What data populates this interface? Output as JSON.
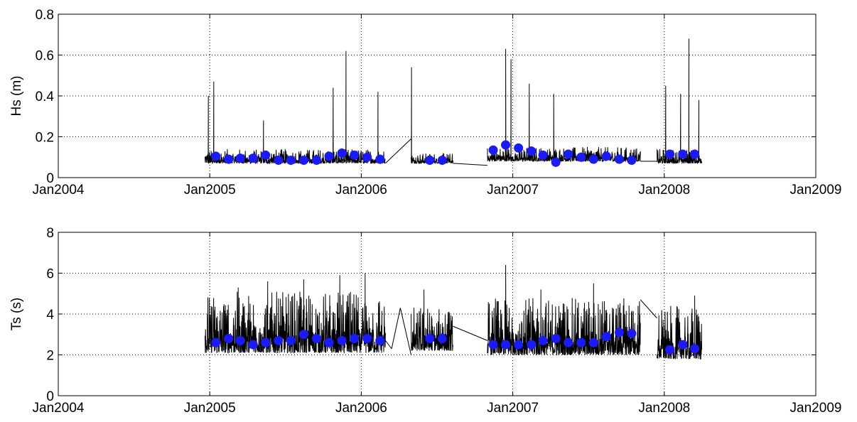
{
  "chart_data": [
    {
      "type": "line",
      "ylabel": "Hs (m)",
      "xlabel": "",
      "title": "",
      "xlim": [
        "2004-01-01",
        "2009-01-01"
      ],
      "ylim": [
        0,
        0.8
      ],
      "grid": true,
      "x_tick_labels": [
        "Jan2004",
        "Jan2005",
        "Jan2006",
        "Jan2007",
        "Jan2008",
        "Jan2009"
      ],
      "y_tick_labels": [
        "0",
        "0.2",
        "0.4",
        "0.6",
        "0.8"
      ],
      "y_ticks": [
        0,
        0.2,
        0.4,
        0.6,
        0.8
      ],
      "series": [
        {
          "style": "time-series line",
          "color": "#000000",
          "segments": [
            {
              "start": "2004-12-20",
              "end": "2006-02-28",
              "baseline": 0.07,
              "spread": 0.07,
              "peaks": [
                [
                  "2004-12-28",
                  0.4
                ],
                [
                  "2005-01-10",
                  0.47
                ],
                [
                  "2005-05-10",
                  0.28
                ],
                [
                  "2005-10-25",
                  0.44
                ],
                [
                  "2005-11-25",
                  0.62
                ],
                [
                  "2006-02-10",
                  0.42
                ]
              ]
            },
            {
              "start": "2006-05-01",
              "end": "2006-08-10",
              "baseline": 0.07,
              "spread": 0.05,
              "peaks": [
                [
                  "2006-05-02",
                  0.54
                ]
              ]
            },
            {
              "start": "2006-11-01",
              "end": "2007-11-05",
              "baseline": 0.08,
              "spread": 0.07,
              "peaks": [
                [
                  "2006-12-15",
                  0.63
                ],
                [
                  "2006-12-28",
                  0.58
                ],
                [
                  "2007-02-10",
                  0.46
                ],
                [
                  "2007-04-10",
                  0.41
                ]
              ]
            },
            {
              "start": "2007-12-15",
              "end": "2008-04-01",
              "baseline": 0.07,
              "spread": 0.07,
              "peaks": [
                [
                  "2008-01-05",
                  0.45
                ],
                [
                  "2008-02-10",
                  0.41
                ],
                [
                  "2008-03-01",
                  0.68
                ],
                [
                  "2008-03-25",
                  0.38
                ]
              ]
            }
          ],
          "connectors": [
            [
              [
                "2006-02-28",
                0.07
              ],
              [
                "2006-05-01",
                0.19
              ]
            ],
            [
              [
                "2006-08-10",
                0.07
              ],
              [
                "2006-11-01",
                0.06
              ]
            ],
            [
              [
                "2007-11-05",
                0.08
              ],
              [
                "2007-12-15",
                0.08
              ]
            ]
          ]
        },
        {
          "style": "markers",
          "color": "#1a1aff",
          "x": [
            "2005-01-15",
            "2005-02-15",
            "2005-03-15",
            "2005-04-15",
            "2005-05-15",
            "2005-06-15",
            "2005-07-15",
            "2005-08-15",
            "2005-09-15",
            "2005-10-15",
            "2005-11-15",
            "2005-12-15",
            "2006-01-15",
            "2006-02-15",
            "2006-06-15",
            "2006-07-15",
            "2006-11-15",
            "2006-12-15",
            "2007-01-15",
            "2007-02-15",
            "2007-03-15",
            "2007-04-15",
            "2007-05-15",
            "2007-06-15",
            "2007-07-15",
            "2007-08-15",
            "2007-09-15",
            "2007-10-15",
            "2008-01-15",
            "2008-02-15",
            "2008-03-15"
          ],
          "y": [
            0.105,
            0.09,
            0.095,
            0.095,
            0.11,
            0.085,
            0.085,
            0.085,
            0.085,
            0.105,
            0.12,
            0.11,
            0.1,
            0.09,
            0.085,
            0.085,
            0.135,
            0.16,
            0.145,
            0.13,
            0.11,
            0.075,
            0.115,
            0.1,
            0.09,
            0.105,
            0.09,
            0.085,
            0.115,
            0.115,
            0.115
          ]
        }
      ]
    },
    {
      "type": "line",
      "ylabel": "Ts (s)",
      "xlabel": "",
      "title": "",
      "xlim": [
        "2004-01-01",
        "2009-01-01"
      ],
      "ylim": [
        0,
        8
      ],
      "grid": true,
      "x_tick_labels": [
        "Jan2004",
        "Jan2005",
        "Jan2006",
        "Jan2007",
        "Jan2008",
        "Jan2009"
      ],
      "y_tick_labels": [
        "0",
        "2",
        "4",
        "6",
        "8"
      ],
      "y_ticks": [
        0,
        2,
        4,
        6,
        8
      ],
      "series": [
        {
          "style": "time-series line",
          "color": "#000000",
          "segments": [
            {
              "start": "2004-12-20",
              "end": "2006-02-28",
              "baseline": 2.1,
              "spread": 3.0,
              "peaks": [
                [
                  "2005-03-10",
                  5.3
                ],
                [
                  "2005-05-20",
                  5.6
                ],
                [
                  "2005-08-15",
                  5.7
                ],
                [
                  "2005-11-10",
                  5.9
                ],
                [
                  "2006-01-10",
                  6.0
                ]
              ]
            },
            {
              "start": "2006-05-01",
              "end": "2006-08-10",
              "baseline": 2.2,
              "spread": 2.2,
              "peaks": [
                [
                  "2006-06-01",
                  5.2
                ]
              ]
            },
            {
              "start": "2006-11-01",
              "end": "2007-11-05",
              "baseline": 2.0,
              "spread": 2.8,
              "peaks": [
                [
                  "2006-12-15",
                  6.4
                ],
                [
                  "2007-03-10",
                  5.2
                ],
                [
                  "2007-07-15",
                  5.5
                ]
              ]
            },
            {
              "start": "2007-12-15",
              "end": "2008-04-01",
              "baseline": 1.8,
              "spread": 2.6,
              "peaks": [
                [
                  "2008-03-15",
                  4.9
                ]
              ]
            }
          ],
          "connectors": [
            [
              [
                "2006-02-28",
                2.7
              ],
              [
                "2006-03-15",
                2.3
              ]
            ],
            [
              [
                "2006-03-15",
                2.3
              ],
              [
                "2006-04-05",
                4.3
              ]
            ],
            [
              [
                "2006-04-05",
                4.3
              ],
              [
                "2006-05-01",
                2.0
              ]
            ],
            [
              [
                "2006-08-10",
                3.4
              ],
              [
                "2006-11-01",
                2.7
              ]
            ],
            [
              [
                "2007-11-05",
                4.7
              ],
              [
                "2007-12-15",
                3.8
              ]
            ]
          ]
        },
        {
          "style": "markers",
          "color": "#1a1aff",
          "x": [
            "2005-01-15",
            "2005-02-15",
            "2005-03-15",
            "2005-04-15",
            "2005-05-15",
            "2005-06-15",
            "2005-07-15",
            "2005-08-15",
            "2005-09-15",
            "2005-10-15",
            "2005-11-15",
            "2005-12-15",
            "2006-01-15",
            "2006-02-15",
            "2006-06-15",
            "2006-07-15",
            "2006-11-15",
            "2006-12-15",
            "2007-01-15",
            "2007-02-15",
            "2007-03-15",
            "2007-04-15",
            "2007-05-15",
            "2007-06-15",
            "2007-07-15",
            "2007-08-15",
            "2007-09-15",
            "2007-10-15",
            "2008-01-15",
            "2008-02-15",
            "2008-03-15"
          ],
          "y": [
            2.6,
            2.8,
            2.7,
            2.5,
            2.6,
            2.7,
            2.7,
            3.0,
            2.8,
            2.6,
            2.7,
            2.8,
            2.8,
            2.7,
            2.8,
            2.8,
            2.5,
            2.5,
            2.5,
            2.5,
            2.7,
            2.8,
            2.6,
            2.6,
            2.6,
            2.9,
            3.1,
            3.05,
            2.25,
            2.5,
            2.3
          ]
        }
      ]
    }
  ]
}
